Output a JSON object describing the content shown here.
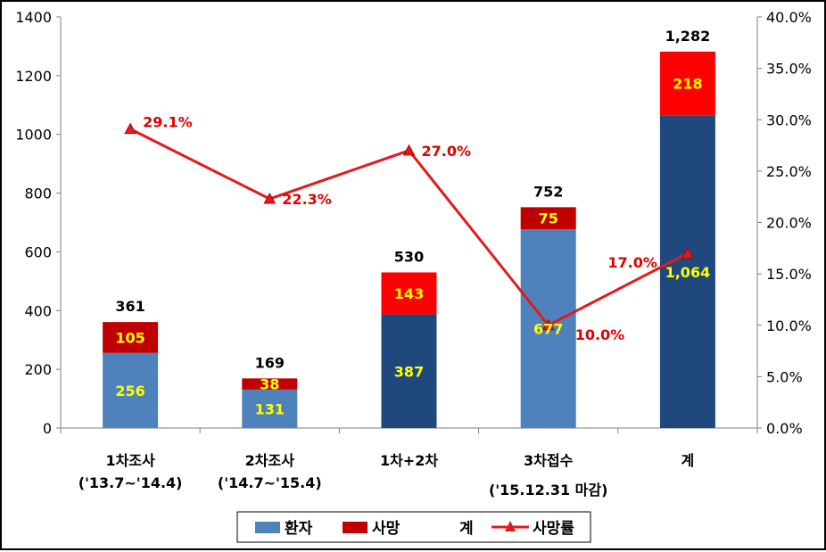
{
  "chart_data": {
    "type": "bar",
    "categories": [
      [
        "1차조사",
        "('13.7~'14.4)"
      ],
      [
        "2차조사",
        "('14.7~'15.4)"
      ],
      [
        "1차+2차"
      ],
      [
        "3차접수",
        "('15.12.31 마감)"
      ],
      [
        "계"
      ]
    ],
    "series": [
      {
        "name": "환자",
        "values": [
          256,
          131,
          387,
          677,
          1064
        ],
        "value_labels": [
          "256",
          "131",
          "387",
          "677",
          "1,064"
        ]
      },
      {
        "name": "사망",
        "values": [
          105,
          38,
          143,
          75,
          218
        ],
        "value_labels": [
          "105",
          "38",
          "143",
          "75",
          "218"
        ]
      },
      {
        "name": "계",
        "values": [
          361,
          169,
          530,
          752,
          1282
        ],
        "value_labels": [
          "361",
          "169",
          "530",
          "752",
          "1,282"
        ]
      },
      {
        "name": "사망률",
        "axis": "right",
        "values": [
          29.1,
          22.3,
          27.0,
          10.0,
          17.0
        ],
        "value_labels": [
          "29.1%",
          "22.3%",
          "27.0%",
          "10.0%",
          "17.0%"
        ]
      }
    ],
    "bar_fill_light": "#4f81bd",
    "bar_fill_dark": "#1f497d",
    "dark_bar_indices": [
      2,
      4
    ],
    "death_color": "#c00000",
    "death_color_bright": "#ff0000",
    "rate_color": "#e31a1c",
    "label_color": "#ffff00",
    "y_left": {
      "min": 0,
      "max": 1400,
      "ticks": [
        "0",
        "200",
        "400",
        "600",
        "800",
        "1000",
        "1200",
        "1400"
      ]
    },
    "y_right": {
      "min": 0,
      "max": 40,
      "ticks": [
        "0.0%",
        "5.0%",
        "10.0%",
        "15.0%",
        "20.0%",
        "25.0%",
        "30.0%",
        "35.0%",
        "40.0%"
      ]
    },
    "grid": false,
    "legend_position": "bottom"
  }
}
